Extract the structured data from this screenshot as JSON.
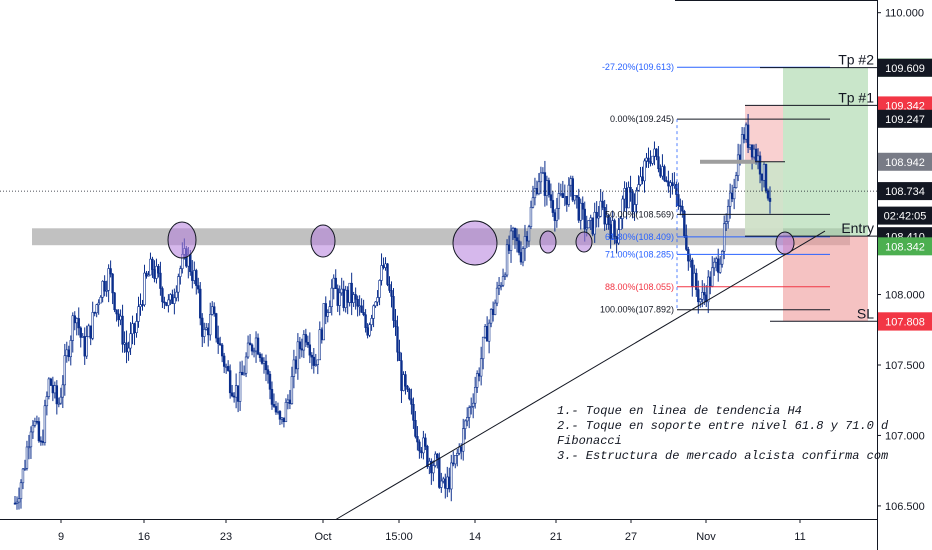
{
  "chart_data": {
    "type": "candlestick",
    "price_range": [
      106.4,
      110.09
    ],
    "y_ticks": [
      "106.500",
      "107.000",
      "107.500",
      "108.000",
      "110.000"
    ],
    "x_ticks": [
      "9",
      "16",
      "23",
      "Oct",
      "15:00",
      "14",
      "21",
      "27",
      "Nov",
      "11"
    ],
    "price_tags": [
      {
        "value": 109.61,
        "text": "109.610",
        "bg": "#4caf50",
        "fg": "#ffffff"
      },
      {
        "value": 109.609,
        "text": "109.609",
        "bg": "#131722",
        "fg": "#ffffff"
      },
      {
        "value": 109.342,
        "text": "109.342",
        "bg": "#f23645",
        "fg": "#ffffff"
      },
      {
        "value": 109.247,
        "text": "109.247",
        "bg": "#131722",
        "fg": "#ffffff"
      },
      {
        "value": 108.942,
        "text": "108.942",
        "bg": "#787b86",
        "fg": "#ffffff"
      },
      {
        "value": 108.734,
        "text": "108.734",
        "bg": "#131722",
        "fg": "#ffffff"
      },
      {
        "value": 108.56,
        "text": "02:42:05",
        "bg": "#131722",
        "fg": "#ffffff"
      },
      {
        "value": 108.414,
        "text": "108.414",
        "bg": "#131722",
        "fg": "#ffffff"
      },
      {
        "value": 108.41,
        "text": "108.410",
        "bg": "#131722",
        "fg": "#ffffff"
      },
      {
        "value": 108.342,
        "text": "108.342",
        "bg": "#4caf50",
        "fg": "#ffffff"
      },
      {
        "value": 107.81,
        "text": "107.810",
        "bg": "#f23645",
        "fg": "#ffffff"
      },
      {
        "value": 107.808,
        "text": "107.808",
        "bg": "#f23645",
        "fg": "#ffffff"
      }
    ],
    "fib_levels": [
      {
        "label": "-27.20%(109.613)",
        "value": 109.613,
        "color": "#2962ff"
      },
      {
        "label": "0.00%(109.245)",
        "value": 109.245,
        "color": "#131722"
      },
      {
        "label": "50.00%(108.569)",
        "value": 108.569,
        "color": "#131722"
      },
      {
        "label": "61.80%(108.409)",
        "value": 108.409,
        "color": "#2962ff"
      },
      {
        "label": "71.00%(108.285)",
        "value": 108.285,
        "color": "#2962ff"
      },
      {
        "label": "88.00%(108.055)",
        "value": 108.055,
        "color": "#f23645"
      },
      {
        "label": "100.00%(107.892)",
        "value": 107.892,
        "color": "#131722"
      }
    ],
    "trade_labels": [
      {
        "text": "Tp #2",
        "value": 109.61
      },
      {
        "text": "Tp #1",
        "value": 109.342
      },
      {
        "text": "Entry",
        "value": 108.414
      },
      {
        "text": "SL",
        "value": 107.81
      }
    ],
    "support_zone": [
      108.35,
      108.47
    ],
    "trendline": {
      "from_value": 106.43,
      "to_value": 108.45
    },
    "current_price": 108.734,
    "ohlc_path": [
      106.52,
      106.75,
      107.15,
      106.9,
      107.4,
      107.2,
      107.55,
      107.9,
      107.6,
      107.8,
      108.05,
      108.15,
      107.85,
      107.6,
      107.75,
      108.05,
      108.2,
      108.05,
      107.9,
      108.15,
      108.28,
      108.1,
      107.7,
      107.85,
      107.6,
      107.4,
      107.3,
      107.55,
      107.7,
      107.55,
      107.25,
      107.05,
      107.3,
      107.6,
      107.75,
      107.5,
      107.85,
      108.05,
      107.95,
      108.0,
      107.9,
      107.75,
      108.0,
      108.2,
      107.9,
      107.4,
      107.2,
      107.0,
      106.85,
      106.8,
      106.6,
      106.75,
      106.95,
      107.2,
      107.45,
      107.75,
      107.95,
      108.2,
      108.4,
      108.3,
      108.55,
      108.85,
      108.75,
      108.6,
      108.7,
      108.75,
      108.55,
      108.45,
      108.6,
      108.55,
      108.4,
      108.7,
      108.65,
      108.8,
      109.0,
      108.95,
      108.85,
      108.7,
      108.5,
      108.1,
      107.95,
      108.1,
      108.25,
      108.5,
      108.9,
      109.15,
      109.05,
      108.9,
      108.7
    ]
  },
  "annotations": {
    "line1": "1.- Toque en linea de tendencia H4",
    "line2": "2.- Toque en soporte entre nivel 61.8 y 71.0 d",
    "line3": "Fibonacci",
    "line4": "3.- Estructura de mercado alcista confirma com"
  },
  "colors": {
    "bull": "#0b2e8c",
    "bear": "#0b2e8c",
    "zone": "#b2b2b2",
    "circle": "#b57edc",
    "tp_zone": "#a5d6a7",
    "sl_zone": "#ef9a9a"
  }
}
